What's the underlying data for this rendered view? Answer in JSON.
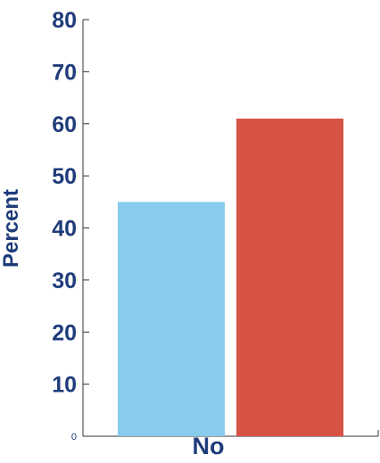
{
  "chart_data": {
    "type": "bar",
    "ylabel": "Percent",
    "xlabel": "",
    "ylim": [
      0,
      80
    ],
    "yticks": [
      0,
      10,
      20,
      30,
      40,
      50,
      60,
      70,
      80
    ],
    "categories": [
      "No"
    ],
    "series": [
      {
        "values": [
          45
        ],
        "color": "#87ccec"
      },
      {
        "values": [
          61
        ],
        "color": "#d65346"
      }
    ],
    "grid": false,
    "legend": "none"
  }
}
